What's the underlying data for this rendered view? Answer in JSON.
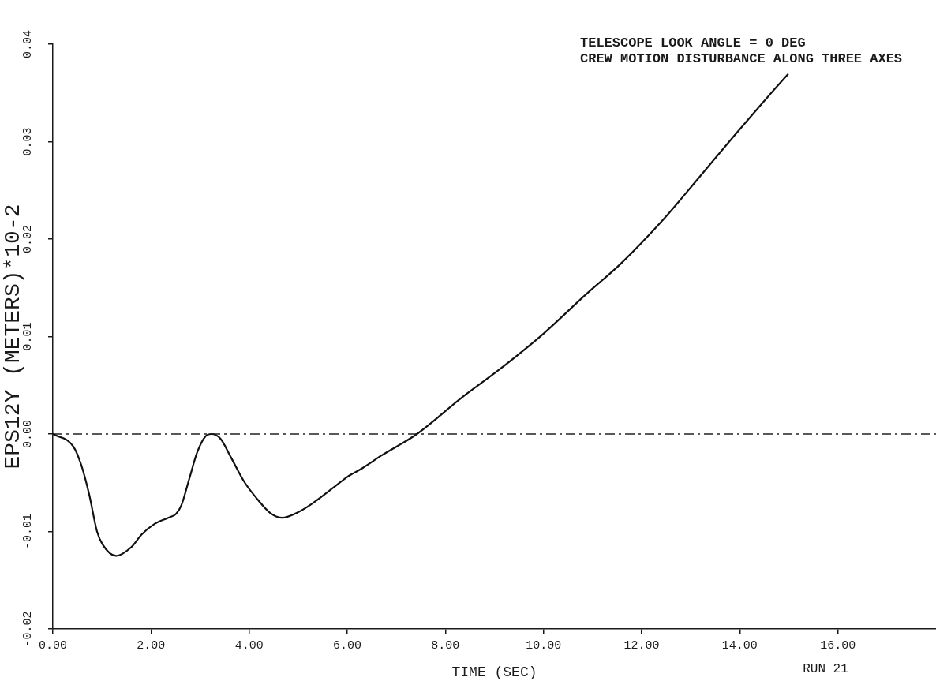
{
  "chart_data": {
    "type": "line",
    "annotations": [
      "TELESCOPE LOOK ANGLE = 0 DEG",
      "CREW MOTION DISTURBANCE ALONG THREE AXES",
      "RUN 21"
    ],
    "xlabel": "TIME (SEC)",
    "ylabel": "EPS12Y (METERS)*10-2",
    "x": [
      0,
      0.42,
      0.58,
      0.74,
      0.9,
      1.01,
      1.29,
      1.6,
      1.81,
      2.08,
      2.35,
      2.51,
      2.62,
      2.78,
      2.94,
      3.1,
      3.23,
      3.42,
      3.63,
      3.9,
      4.17,
      4.43,
      4.68,
      4.97,
      5.24,
      5.77,
      6.0,
      6.31,
      6.7,
      7.42,
      8.35,
      9.07,
      10.0,
      10.86,
      11.58,
      12.44,
      13.15,
      13.87,
      14.59,
      14.98
    ],
    "values": [
      0,
      -0.0013,
      -0.0032,
      -0.0062,
      -0.01,
      -0.0113,
      -0.0125,
      -0.0116,
      -0.0103,
      -0.0092,
      -0.0086,
      -0.0082,
      -0.0073,
      -0.0046,
      -0.0019,
      -0.0003,
      0,
      -0.0005,
      -0.0024,
      -0.0049,
      -0.0067,
      -0.0081,
      -0.0086,
      -0.0081,
      -0.0073,
      -0.0053,
      -0.0044,
      -0.0035,
      -0.0022,
      0,
      0.0038,
      0.0065,
      0.0103,
      0.0143,
      0.0175,
      0.022,
      0.0262,
      0.0305,
      0.0347,
      0.0369
    ],
    "color": "#111111",
    "marker": "none",
    "line_style": "solid",
    "xlim": [
      0,
      18
    ],
    "xticks": [
      {
        "value": 0,
        "label": "0.00"
      },
      {
        "value": 2,
        "label": "2.00"
      },
      {
        "value": 4,
        "label": "4.00"
      },
      {
        "value": 6,
        "label": "6.00"
      },
      {
        "value": 8,
        "label": "8.00"
      },
      {
        "value": 10,
        "label": "10.00"
      },
      {
        "value": 12,
        "label": "12.00"
      },
      {
        "value": 14,
        "label": "14.00"
      },
      {
        "value": 16,
        "label": "16.00"
      }
    ],
    "ylim": [
      -0.02,
      0.04
    ],
    "yticks": [
      -0.02,
      -0.01,
      {
        "value": 0,
        "label": "0.00"
      },
      0.01,
      0.02,
      0.03,
      0.04
    ],
    "ref_lines": [
      {
        "axis": "y",
        "value": 0,
        "color": "#222222",
        "line_style": "dashed"
      }
    ]
  }
}
